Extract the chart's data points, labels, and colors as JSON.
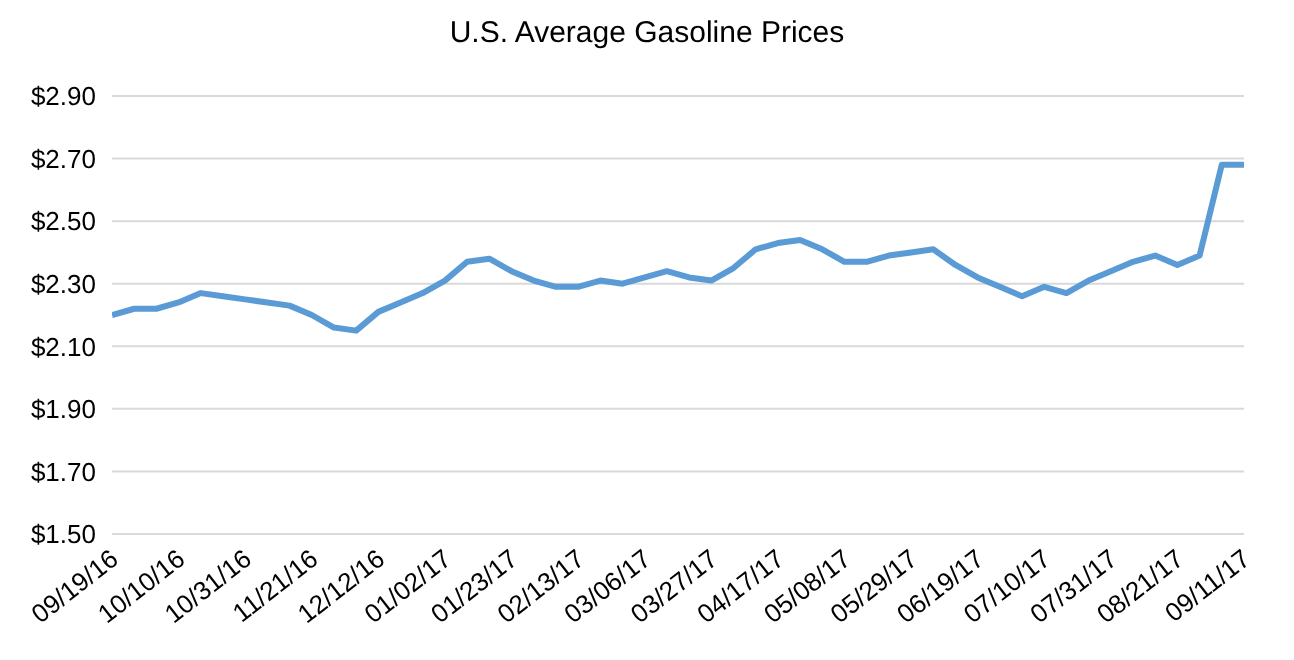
{
  "chart_data": {
    "type": "line",
    "title": "U.S. Average Gasoline Prices",
    "categories": [
      "09/19/16",
      null,
      null,
      "10/10/16",
      null,
      null,
      "10/31/16",
      null,
      null,
      "11/21/16",
      null,
      null,
      "12/12/16",
      null,
      null,
      "01/02/17",
      null,
      null,
      "01/23/17",
      null,
      null,
      "02/13/17",
      null,
      null,
      "03/06/17",
      null,
      null,
      "03/27/17",
      null,
      null,
      "04/17/17",
      null,
      null,
      "05/08/17",
      null,
      null,
      "05/29/17",
      null,
      null,
      "06/19/17",
      null,
      null,
      "07/10/17",
      null,
      null,
      "07/31/17",
      null,
      null,
      "08/21/17",
      null,
      null,
      "09/11/17"
    ],
    "series": [
      {
        "color": "#5b9bd5",
        "values": [
          2.2,
          2.22,
          2.22,
          2.24,
          2.27,
          2.26,
          2.25,
          2.24,
          2.23,
          2.2,
          2.16,
          2.15,
          2.21,
          2.24,
          2.27,
          2.31,
          2.37,
          2.38,
          2.34,
          2.31,
          2.29,
          2.29,
          2.31,
          2.3,
          2.32,
          2.34,
          2.32,
          2.31,
          2.35,
          2.41,
          2.43,
          2.44,
          2.41,
          2.37,
          2.37,
          2.39,
          2.4,
          2.41,
          2.36,
          2.32,
          2.29,
          2.26,
          2.29,
          2.27,
          2.31,
          2.34,
          2.37,
          2.39,
          2.36,
          2.39,
          2.68,
          2.68
        ]
      }
    ],
    "ylim": [
      1.5,
      2.9
    ],
    "yticks": [
      {
        "value": 1.5,
        "label": "$1.50"
      },
      {
        "value": 1.7,
        "label": "$1.70"
      },
      {
        "value": 1.9,
        "label": "$1.90"
      },
      {
        "value": 2.1,
        "label": "$2.10"
      },
      {
        "value": 2.3,
        "label": "$2.30"
      },
      {
        "value": 2.5,
        "label": "$2.50"
      },
      {
        "value": 2.7,
        "label": "$2.70"
      },
      {
        "value": 2.9,
        "label": "$2.90"
      }
    ],
    "grid": "y",
    "legend": false,
    "marker": "none",
    "line_style": "solid"
  }
}
